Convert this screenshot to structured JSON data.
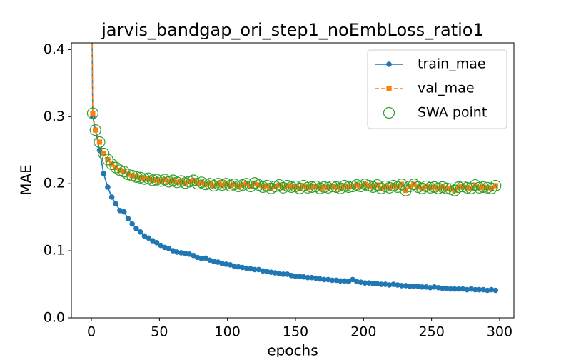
{
  "chart_data": {
    "type": "line",
    "title": "jarvis_bandgap_ori_step1_noEmbLoss_ratio1",
    "x_label": "epochs",
    "y_label": "MAE",
    "x": [
      0,
      1,
      3,
      6,
      9,
      12,
      15,
      18,
      21,
      24,
      27,
      30,
      33,
      36,
      39,
      42,
      45,
      48,
      51,
      54,
      57,
      60,
      63,
      66,
      69,
      72,
      75,
      78,
      81,
      84,
      87,
      90,
      93,
      96,
      99,
      102,
      105,
      108,
      111,
      114,
      117,
      120,
      123,
      126,
      129,
      132,
      135,
      138,
      141,
      144,
      147,
      150,
      153,
      156,
      159,
      162,
      165,
      168,
      171,
      174,
      177,
      180,
      183,
      186,
      189,
      192,
      195,
      198,
      201,
      204,
      207,
      210,
      213,
      216,
      219,
      222,
      225,
      228,
      231,
      234,
      237,
      240,
      243,
      246,
      249,
      252,
      255,
      258,
      261,
      264,
      267,
      270,
      273,
      276,
      279,
      282,
      285,
      288,
      291,
      294,
      297
    ],
    "series": [
      {
        "name": "train_mae",
        "color": "#1f77b4",
        "style": "solid-circle",
        "values": [
          0.55,
          0.3,
          0.28,
          0.25,
          0.215,
          0.195,
          0.18,
          0.17,
          0.16,
          0.158,
          0.148,
          0.14,
          0.133,
          0.128,
          0.122,
          0.119,
          0.115,
          0.112,
          0.108,
          0.105,
          0.103,
          0.1,
          0.098,
          0.097,
          0.096,
          0.095,
          0.093,
          0.09,
          0.088,
          0.089,
          0.086,
          0.084,
          0.083,
          0.081,
          0.08,
          0.079,
          0.077,
          0.076,
          0.075,
          0.074,
          0.073,
          0.072,
          0.072,
          0.07,
          0.069,
          0.068,
          0.067,
          0.066,
          0.065,
          0.065,
          0.063,
          0.062,
          0.062,
          0.061,
          0.06,
          0.06,
          0.059,
          0.058,
          0.057,
          0.057,
          0.056,
          0.056,
          0.055,
          0.055,
          0.054,
          0.057,
          0.054,
          0.053,
          0.052,
          0.052,
          0.051,
          0.051,
          0.05,
          0.05,
          0.049,
          0.05,
          0.049,
          0.048,
          0.048,
          0.047,
          0.047,
          0.047,
          0.046,
          0.046,
          0.045,
          0.046,
          0.045,
          0.044,
          0.044,
          0.043,
          0.043,
          0.043,
          0.043,
          0.042,
          0.043,
          0.042,
          0.042,
          0.042,
          0.041,
          0.042,
          0.041
        ]
      },
      {
        "name": "val_mae",
        "color": "#ff7f0e",
        "style": "dashed-square",
        "values": [
          0.6,
          0.305,
          0.28,
          0.262,
          0.245,
          0.236,
          0.229,
          0.224,
          0.22,
          0.218,
          0.214,
          0.212,
          0.21,
          0.209,
          0.207,
          0.208,
          0.205,
          0.206,
          0.204,
          0.206,
          0.203,
          0.205,
          0.202,
          0.204,
          0.201,
          0.203,
          0.205,
          0.2,
          0.202,
          0.199,
          0.2,
          0.197,
          0.2,
          0.198,
          0.2,
          0.197,
          0.199,
          0.196,
          0.198,
          0.2,
          0.196,
          0.201,
          0.198,
          0.195,
          0.197,
          0.193,
          0.196,
          0.198,
          0.194,
          0.197,
          0.195,
          0.196,
          0.193,
          0.197,
          0.194,
          0.195,
          0.196,
          0.193,
          0.195,
          0.194,
          0.196,
          0.195,
          0.193,
          0.197,
          0.195,
          0.196,
          0.198,
          0.196,
          0.199,
          0.197,
          0.195,
          0.198,
          0.193,
          0.196,
          0.194,
          0.197,
          0.195,
          0.199,
          0.19,
          0.196,
          0.199,
          0.195,
          0.193,
          0.196,
          0.194,
          0.195,
          0.193,
          0.195,
          0.193,
          0.192,
          0.19,
          0.195,
          0.196,
          0.194,
          0.193,
          0.198,
          0.194,
          0.195,
          0.194,
          0.193,
          0.197
        ]
      },
      {
        "name": "SWA point",
        "color": "#2ca02c",
        "style": "hollow-circle",
        "values": [
          0.6,
          0.305,
          0.28,
          0.262,
          0.245,
          0.236,
          0.229,
          0.224,
          0.22,
          0.218,
          0.214,
          0.212,
          0.21,
          0.209,
          0.207,
          0.208,
          0.205,
          0.206,
          0.204,
          0.206,
          0.203,
          0.205,
          0.202,
          0.204,
          0.201,
          0.203,
          0.205,
          0.2,
          0.202,
          0.199,
          0.2,
          0.197,
          0.2,
          0.198,
          0.2,
          0.197,
          0.199,
          0.196,
          0.198,
          0.2,
          0.196,
          0.201,
          0.198,
          0.195,
          0.197,
          0.193,
          0.196,
          0.198,
          0.194,
          0.197,
          0.195,
          0.196,
          0.193,
          0.197,
          0.194,
          0.195,
          0.196,
          0.193,
          0.195,
          0.194,
          0.196,
          0.195,
          0.193,
          0.197,
          0.195,
          0.196,
          0.198,
          0.196,
          0.199,
          0.197,
          0.195,
          0.198,
          0.193,
          0.196,
          0.194,
          0.197,
          0.195,
          0.199,
          0.19,
          0.196,
          0.199,
          0.195,
          0.193,
          0.196,
          0.194,
          0.195,
          0.193,
          0.195,
          0.193,
          0.192,
          0.19,
          0.195,
          0.196,
          0.194,
          0.193,
          0.198,
          0.194,
          0.195,
          0.194,
          0.193,
          0.197
        ]
      }
    ],
    "xlim": [
      -14.7,
      310.5
    ],
    "xticks": [
      0,
      50,
      100,
      150,
      200,
      250,
      300
    ],
    "ylim": [
      0,
      0.41
    ],
    "yticks": [
      {
        "value": 0,
        "label": "0.0"
      },
      0.1,
      0.2,
      0.3,
      0.4
    ],
    "legend": "upper right"
  }
}
